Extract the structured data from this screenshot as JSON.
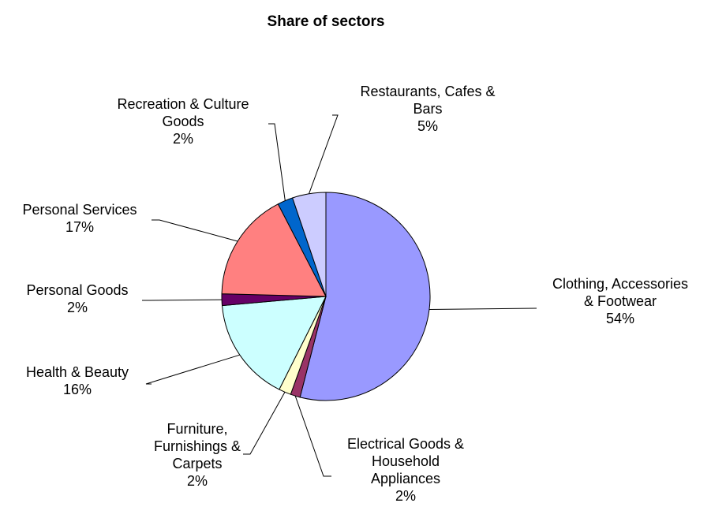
{
  "chart_data": {
    "type": "pie",
    "title": "Share of sectors",
    "slices": [
      {
        "label": "Clothing, Accessories & Footwear",
        "lines": [
          "Clothing, Accessories",
          "& Footwear"
        ],
        "percent_label": "54%",
        "value": 54,
        "color": "#9999ff"
      },
      {
        "label": "Electrical Goods & Household Appliances",
        "lines": [
          "Electrical Goods &",
          "Household",
          "Appliances"
        ],
        "percent_label": "2%",
        "value": 1.5,
        "color": "#993366"
      },
      {
        "label": "Furniture, Furnishings & Carpets",
        "lines": [
          "Furniture,",
          "Furnishings &",
          "Carpets"
        ],
        "percent_label": "2%",
        "value": 1.9,
        "color": "#ffffcc"
      },
      {
        "label": "Health & Beauty",
        "lines": [
          "Health & Beauty"
        ],
        "percent_label": "16%",
        "value": 16.2,
        "color": "#ccffff"
      },
      {
        "label": "Personal Goods",
        "lines": [
          "Personal Goods"
        ],
        "percent_label": "2%",
        "value": 1.8,
        "color": "#660066"
      },
      {
        "label": "Personal Services",
        "lines": [
          "Personal Services"
        ],
        "percent_label": "17%",
        "value": 17,
        "color": "#ff8080"
      },
      {
        "label": "Recreation & Culture Goods",
        "lines": [
          "Recreation & Culture",
          "Goods"
        ],
        "percent_label": "2%",
        "value": 2.4,
        "color": "#0066cc"
      },
      {
        "label": "Restaurants, Cafes & Bars",
        "lines": [
          "Restaurants, Cafes &",
          "Bars"
        ],
        "percent_label": "5%",
        "value": 5.2,
        "color": "#ccccff"
      }
    ]
  }
}
